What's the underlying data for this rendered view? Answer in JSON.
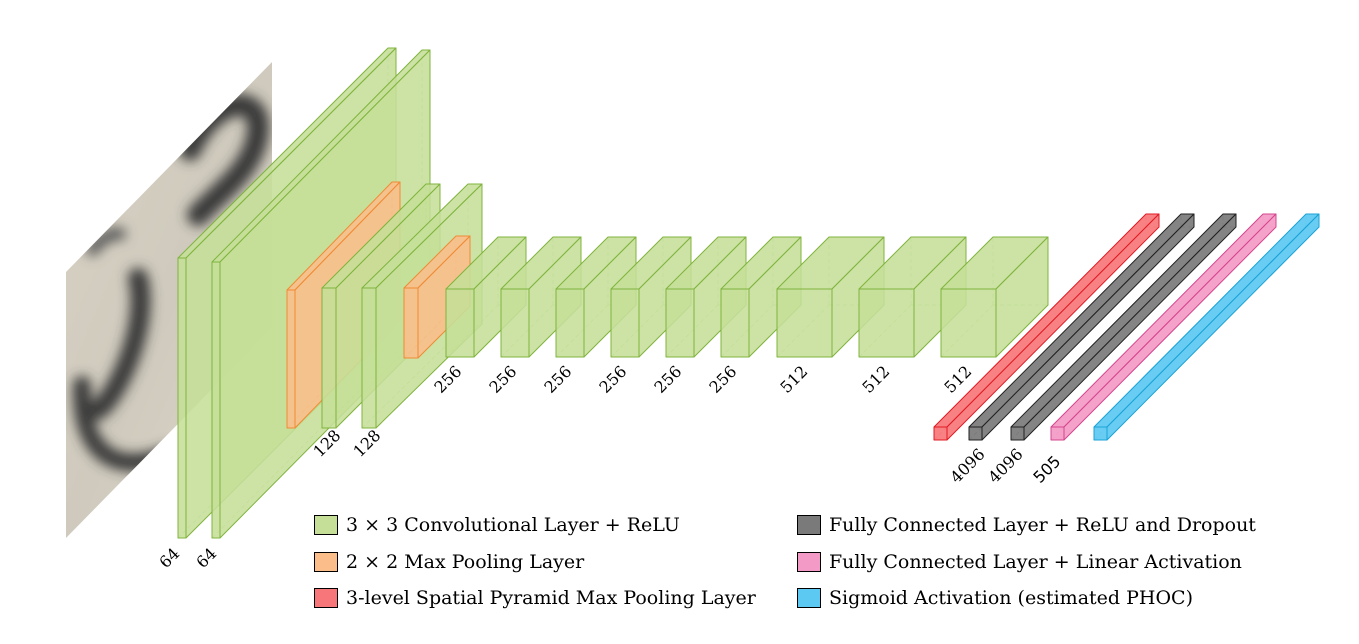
{
  "colors": {
    "conv": "#c5df98",
    "conv_edge": "#7fb33d",
    "pool": "#fbbd8a",
    "pool_edge": "#f08a35",
    "spp": "#f7767a",
    "spp_edge": "#e01b24",
    "fc_relu": "#7a7a7a",
    "fc_relu_edge": "#222222",
    "fc_linear": "#f49ac6",
    "fc_linear_edge": "#d4458e",
    "sigmoid": "#5cc9f2",
    "sigmoid_edge": "#1aa2d6"
  },
  "input_image": {
    "icon": "handwritten-word-image"
  },
  "layer_labels": {
    "conv1_a": "64",
    "conv1_b": "64",
    "conv2_a": "128",
    "conv2_b": "128",
    "conv3_a": "256",
    "conv3_b": "256",
    "conv3_c": "256",
    "conv3_d": "256",
    "conv3_e": "256",
    "conv3_f": "256",
    "conv4_a": "512",
    "conv4_b": "512",
    "conv4_c": "512",
    "fc1": "4096",
    "fc2": "4096",
    "fc3": "505"
  },
  "legend": {
    "conv": "3 × 3 Convolutional Layer + ReLU",
    "pool": "2 × 2 Max Pooling Layer",
    "spp": "3-level Spatial Pyramid Max Pooling Layer",
    "fc_relu": "Fully Connected Layer + ReLU and Dropout",
    "fc_linear": "Fully Connected Layer + Linear Activation",
    "sigmoid": "Sigmoid Activation (estimated PHOC)"
  }
}
